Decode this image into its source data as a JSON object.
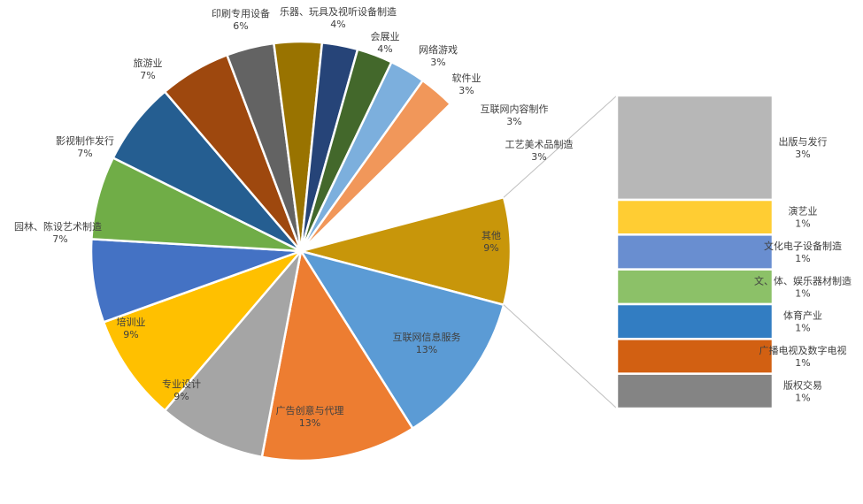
{
  "chart_data": {
    "type": "pie",
    "subtype": "bar-of-pie",
    "title": "",
    "main_slices": [
      {
        "label": "其他",
        "value": 9,
        "value_label": "9%",
        "color": "#C8960A"
      },
      {
        "label": "互联网信息服务",
        "value": 13,
        "value_label": "13%",
        "color": "#5B9BD5"
      },
      {
        "label": "广告创意与代理",
        "value": 13,
        "value_label": "13%",
        "color": "#ED7D31"
      },
      {
        "label": "专业设计",
        "value": 9,
        "value_label": "9%",
        "color": "#A5A5A5"
      },
      {
        "label": "培训业",
        "value": 9,
        "value_label": "9%",
        "color": "#FFC000"
      },
      {
        "label": "园林、陈设艺术制造",
        "value": 7,
        "value_label": "7%",
        "color": "#4472C4"
      },
      {
        "label": "影视制作发行",
        "value": 7,
        "value_label": "7%",
        "color": "#70AD47"
      },
      {
        "label": "旅游业",
        "value": 7,
        "value_label": "7%",
        "color": "#255E91"
      },
      {
        "label": "印刷专用设备",
        "value": 6,
        "value_label": "6%",
        "color": "#9E480E"
      },
      {
        "label": "乐器、玩具及视听设备制造",
        "value": 4,
        "value_label": "4%",
        "color": "#636363"
      },
      {
        "label": "会展业",
        "value": 4,
        "value_label": "4%",
        "color": "#997300"
      },
      {
        "label": "网络游戏",
        "value": 3,
        "value_label": "3%",
        "color": "#264478"
      },
      {
        "label": "软件业",
        "value": 3,
        "value_label": "3%",
        "color": "#43682B"
      },
      {
        "label": "互联网内容制作",
        "value": 3,
        "value_label": "3%",
        "color": "#7CAFDD"
      },
      {
        "label": "工艺美术品制造",
        "value": 3,
        "value_label": "3%",
        "color": "#F1975A"
      }
    ],
    "secondary_bar": [
      {
        "label": "出版与发行",
        "value": 3,
        "value_label": "3%",
        "color": "#B7B7B7"
      },
      {
        "label": "演艺业",
        "value": 1,
        "value_label": "1%",
        "color": "#FFCD33"
      },
      {
        "label": "文化电子设备制造",
        "value": 1,
        "value_label": "1%",
        "color": "#698ED0"
      },
      {
        "label": "文、体、娱乐器材制造",
        "value": 1,
        "value_label": "1%",
        "color": "#8CC168"
      },
      {
        "label": "体育产业",
        "value": 1,
        "value_label": "1%",
        "color": "#327DC2"
      },
      {
        "label": "广播电视及数字电视",
        "value": 1,
        "value_label": "1%",
        "color": "#D26012"
      },
      {
        "label": "版权交易",
        "value": 1,
        "value_label": "1%",
        "color": "#848484"
      }
    ]
  }
}
